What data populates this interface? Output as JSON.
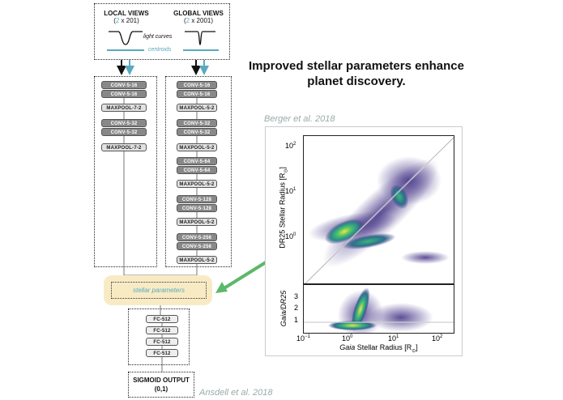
{
  "headline": {
    "line1": "Improved stellar parameters enhance",
    "line2": "planet discovery."
  },
  "citations": {
    "top": "Berger et al. 2018",
    "bottom": "Ansdell et al. 2018"
  },
  "input": {
    "local_title": "LOCAL VIEWS",
    "local_sub_prefix": "(",
    "local_sub_n": "2",
    "local_sub_suffix": " x 201)",
    "global_title": "GLOBAL VIEWS",
    "global_sub_prefix": "(",
    "global_sub_n": "2",
    "global_sub_suffix": " x 2001)",
    "light_curves": "light curves",
    "centroids": "centroids"
  },
  "local_layers": [
    "CONV-5-16",
    "CONV-5-16",
    "MAXPOOL-7-2",
    "CONV-5-32",
    "CONV-5-32",
    "MAXPOOL-7-2"
  ],
  "global_layers": [
    "CONV-5-16",
    "CONV-5-16",
    "MAXPOOL-5-2",
    "CONV-5-32",
    "CONV-5-32",
    "MAXPOOL-5-2",
    "CONV-5-64",
    "CONV-5-64",
    "MAXPOOL-5-2",
    "CONV-5-128",
    "CONV-5-128",
    "MAXPOOL-5-2",
    "CONV-5-256",
    "CONV-5-256",
    "MAXPOOL-5-2"
  ],
  "stellar_parameters": "stellar parameters",
  "fc_layers": [
    "FC-512",
    "FC-512",
    "FC-512",
    "FC-512"
  ],
  "output": {
    "title": "SIGMOID OUTPUT",
    "value": "(0,1)"
  },
  "plot": {
    "ylabel_top_prefix": "DR25 Stellar Radius [R",
    "ylabel_top_sub": "⊙",
    "ylabel_top_suffix": "]",
    "ylabel_bottom": "Gaia/DR25",
    "xlabel_prefix": "Gaia",
    "xlabel_suffix": " Stellar Radius [R",
    "xlabel_sub": "⊙",
    "xlabel_end": "]",
    "yticks_top": [
      "10",
      "10",
      "10"
    ],
    "yticks_top_exp": [
      "2",
      "1",
      "0"
    ],
    "yticks_bottom": [
      "3",
      "2",
      "1"
    ],
    "xticks": [
      "10",
      "10",
      "10",
      "10"
    ],
    "xticks_exp": [
      "−1",
      "0",
      "1",
      "2"
    ]
  },
  "colors": {
    "teal": "#5aa9c0",
    "arrow_green": "#5db86a",
    "highlight": "#f8ebc4"
  }
}
